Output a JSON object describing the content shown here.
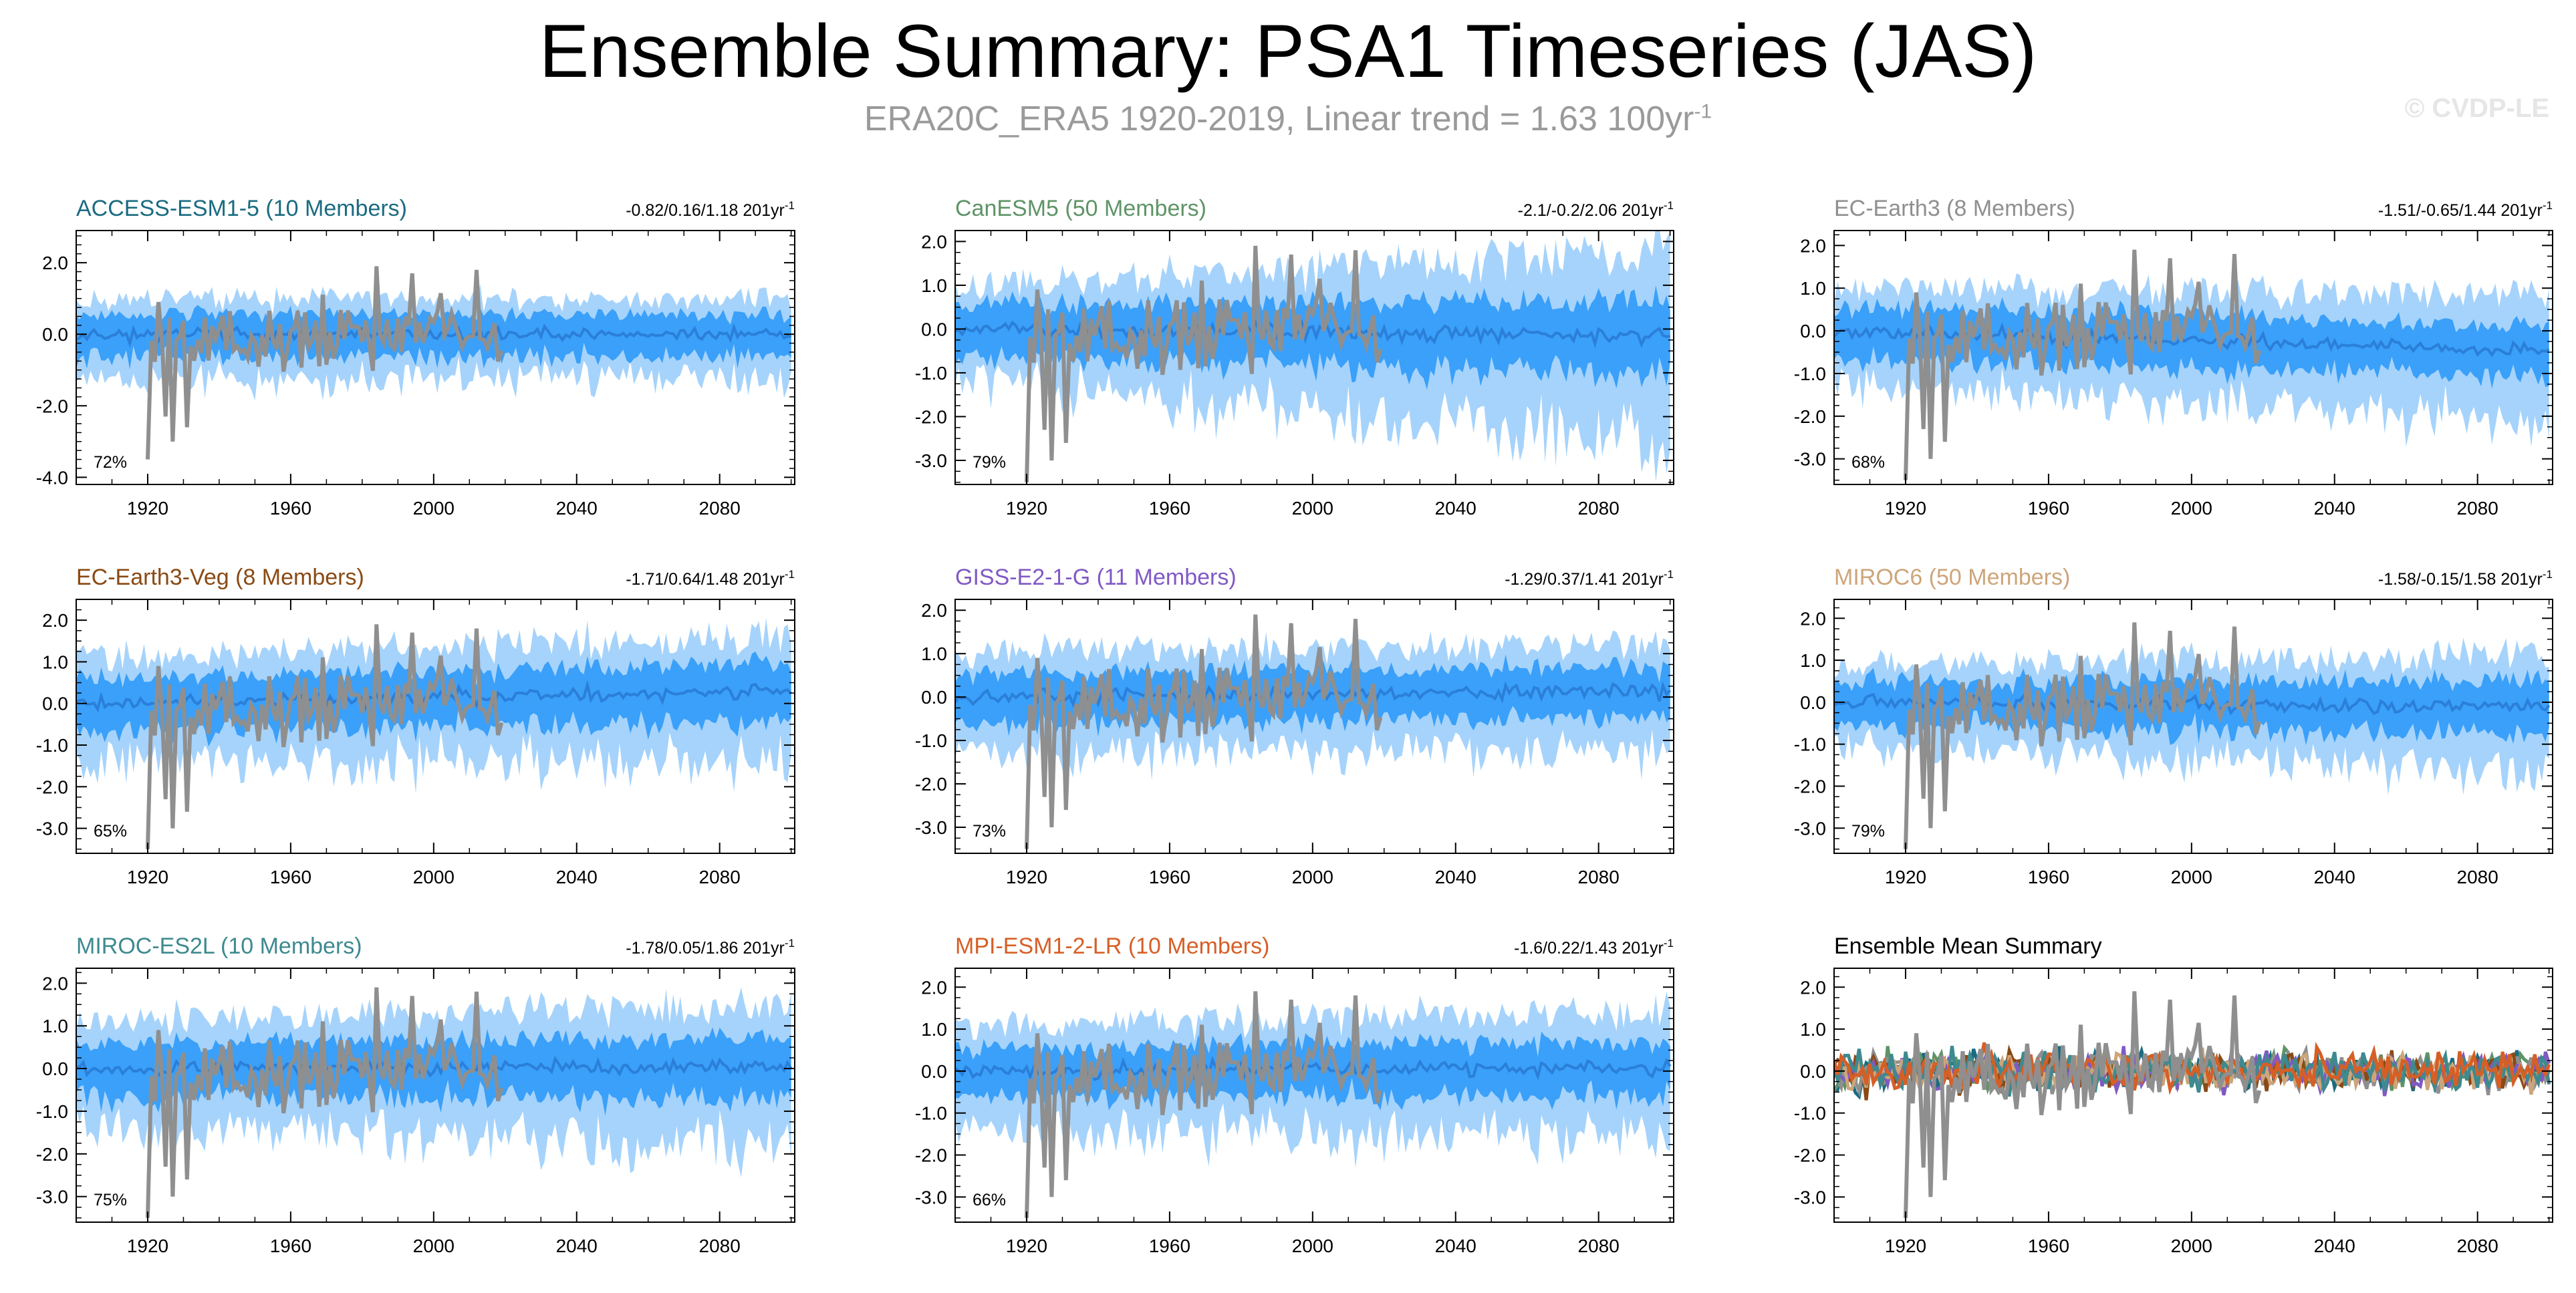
{
  "header": {
    "title": "Ensemble Summary: PSA1 Timeseries (JAS)",
    "subtitle_main": "ERA20C_ERA5 1920-2019, Linear trend = 1.63 100yr",
    "subtitle_sup": "-1",
    "watermark": "© CVDP-LE"
  },
  "colors": {
    "outer_band": "#a6d3fb",
    "inner_band": "#3aa0f9",
    "ensemble_mean": "#2b7fd9",
    "observations": "#8f8f8f",
    "axis": "#000000"
  },
  "chart_data": [
    {
      "type": "area",
      "id": "access",
      "title": "ACCESS-ESM1-5 (10 Members)",
      "title_color": "#1a6b80",
      "stat_text": "-0.82/0.16/1.18 201yr",
      "stat_sup": "-1",
      "pct": "72%",
      "ylim": [
        -4.2,
        2.9
      ],
      "yticks": [
        2.0,
        0.0,
        -2.0,
        -4.0
      ],
      "ytick_labels": [
        "2.0",
        "0.0",
        "-2.0",
        "-4.0"
      ],
      "xlim": [
        1900,
        2101
      ],
      "xticks": [
        1920,
        1960,
        2000,
        2040,
        2080
      ],
      "xtick_labels": [
        "1920",
        "1960",
        "2000",
        "2040",
        "2080"
      ],
      "outer": 0.95,
      "inner": 0.55,
      "outer_trend": 0.0,
      "inner_trend": 0.0,
      "mean_trend": 0.0,
      "seed": 11
    },
    {
      "type": "area",
      "id": "canesm5",
      "title": "CanESM5 (50 Members)",
      "title_color": "#5e9467",
      "stat_text": "-2.1/-0.2/2.06 201yr",
      "stat_sup": "-1",
      "pct": "79%",
      "ylim": [
        -3.55,
        2.25
      ],
      "yticks": [
        2.0,
        1.0,
        0.0,
        -1.0,
        -2.0,
        -3.0
      ],
      "ytick_labels": [
        "2.0",
        "1.0",
        "0.0",
        "-1.0",
        "-2.0",
        "-3.0"
      ],
      "xlim": [
        1900,
        2101
      ],
      "xticks": [
        1920,
        1960,
        2000,
        2040,
        2080
      ],
      "xtick_labels": [
        "1920",
        "1960",
        "2000",
        "2040",
        "2080"
      ],
      "outer": 0.95,
      "inner": 0.55,
      "outer_trend": 0.9,
      "inner_trend": 0.5,
      "mean_trend": -0.15,
      "seed": 23
    },
    {
      "type": "area",
      "id": "ecearth3",
      "title": "EC-Earth3 (8 Members)",
      "title_color": "#8f8f8f",
      "stat_text": "-1.51/-0.65/1.44 201yr",
      "stat_sup": "-1",
      "pct": "68%",
      "ylim": [
        -3.6,
        2.35
      ],
      "yticks": [
        2.0,
        1.0,
        0.0,
        -1.0,
        -2.0,
        -3.0
      ],
      "ytick_labels": [
        "2.0",
        "1.0",
        "0.0",
        "-1.0",
        "-2.0",
        "-3.0"
      ],
      "xlim": [
        1900,
        2101
      ],
      "xticks": [
        1920,
        1960,
        2000,
        2040,
        2080
      ],
      "xtick_labels": [
        "1920",
        "1960",
        "2000",
        "2040",
        "2080"
      ],
      "outer": 1.0,
      "inner": 0.55,
      "outer_trend": 0.2,
      "inner_trend": 0.1,
      "mean_trend": -0.45,
      "seed": 37
    },
    {
      "type": "area",
      "id": "ecearth3veg",
      "title": "EC-Earth3-Veg (8 Members)",
      "title_color": "#8a4a14",
      "stat_text": "-1.71/0.64/1.48 201yr",
      "stat_sup": "-1",
      "pct": "65%",
      "ylim": [
        -3.6,
        2.5
      ],
      "yticks": [
        2.0,
        1.0,
        0.0,
        -1.0,
        -2.0,
        -3.0
      ],
      "ytick_labels": [
        "2.0",
        "1.0",
        "0.0",
        "-1.0",
        "-2.0",
        "-3.0"
      ],
      "xlim": [
        1900,
        2101
      ],
      "xticks": [
        1920,
        1960,
        2000,
        2040,
        2080
      ],
      "xtick_labels": [
        "1920",
        "1960",
        "2000",
        "2040",
        "2080"
      ],
      "outer": 1.05,
      "inner": 0.6,
      "outer_trend": 0.2,
      "inner_trend": 0.1,
      "mean_trend": 0.3,
      "seed": 41
    },
    {
      "type": "area",
      "id": "giss",
      "title": "GISS-E2-1-G (11 Members)",
      "title_color": "#8059c4",
      "stat_text": "-1.29/0.37/1.41 201yr",
      "stat_sup": "-1",
      "pct": "73%",
      "ylim": [
        -3.6,
        2.25
      ],
      "yticks": [
        2.0,
        1.0,
        0.0,
        -1.0,
        -2.0,
        -3.0
      ],
      "ytick_labels": [
        "2.0",
        "1.0",
        "0.0",
        "-1.0",
        "-2.0",
        "-3.0"
      ],
      "xlim": [
        1900,
        2101
      ],
      "xticks": [
        1920,
        1960,
        2000,
        2040,
        2080
      ],
      "xtick_labels": [
        "1920",
        "1960",
        "2000",
        "2040",
        "2080"
      ],
      "outer": 1.0,
      "inner": 0.55,
      "outer_trend": 0.0,
      "inner_trend": 0.0,
      "mean_trend": 0.15,
      "seed": 53
    },
    {
      "type": "area",
      "id": "miroc6",
      "title": "MIROC6 (50 Members)",
      "title_color": "#cda57a",
      "stat_text": "-1.58/-0.15/1.58 201yr",
      "stat_sup": "-1",
      "pct": "79%",
      "ylim": [
        -3.6,
        2.45
      ],
      "yticks": [
        2.0,
        1.0,
        0.0,
        -1.0,
        -2.0,
        -3.0
      ],
      "ytick_labels": [
        "2.0",
        "1.0",
        "0.0",
        "-1.0",
        "-2.0",
        "-3.0"
      ],
      "xlim": [
        1900,
        2101
      ],
      "xticks": [
        1920,
        1960,
        2000,
        2040,
        2080
      ],
      "xtick_labels": [
        "1920",
        "1960",
        "2000",
        "2040",
        "2080"
      ],
      "outer": 0.85,
      "inner": 0.5,
      "outer_trend": 0.4,
      "inner_trend": 0.25,
      "mean_trend": -0.1,
      "seed": 67
    },
    {
      "type": "area",
      "id": "mirocesl",
      "title": "MIROC-ES2L (10 Members)",
      "title_color": "#3d8a8f",
      "stat_text": "-1.78/0.05/1.86 201yr",
      "stat_sup": "-1",
      "pct": "75%",
      "ylim": [
        -3.6,
        2.35
      ],
      "yticks": [
        2.0,
        1.0,
        0.0,
        -1.0,
        -2.0,
        -3.0
      ],
      "ytick_labels": [
        "2.0",
        "1.0",
        "0.0",
        "-1.0",
        "-2.0",
        "-3.0"
      ],
      "xlim": [
        1900,
        2101
      ],
      "xticks": [
        1920,
        1960,
        2000,
        2040,
        2080
      ],
      "xtick_labels": [
        "1920",
        "1960",
        "2000",
        "2040",
        "2080"
      ],
      "outer": 1.05,
      "inner": 0.6,
      "outer_trend": 0.3,
      "inner_trend": 0.1,
      "mean_trend": 0.05,
      "seed": 79
    },
    {
      "type": "area",
      "id": "mpi",
      "title": "MPI-ESM1-2-LR (10 Members)",
      "title_color": "#d65f26",
      "stat_text": "-1.6/0.22/1.43 201yr",
      "stat_sup": "-1",
      "pct": "66%",
      "ylim": [
        -3.6,
        2.45
      ],
      "yticks": [
        2.0,
        1.0,
        0.0,
        -1.0,
        -2.0,
        -3.0
      ],
      "ytick_labels": [
        "2.0",
        "1.0",
        "0.0",
        "-1.0",
        "-2.0",
        "-3.0"
      ],
      "xlim": [
        1900,
        2101
      ],
      "xticks": [
        1920,
        1960,
        2000,
        2040,
        2080
      ],
      "xtick_labels": [
        "1920",
        "1960",
        "2000",
        "2040",
        "2080"
      ],
      "outer": 1.0,
      "inner": 0.55,
      "outer_trend": 0.3,
      "inner_trend": 0.1,
      "mean_trend": 0.1,
      "seed": 83
    },
    {
      "type": "line",
      "id": "summary",
      "title": "Ensemble Mean Summary",
      "title_color": "#000000",
      "stat_text": "",
      "stat_sup": "",
      "pct": "",
      "ylim": [
        -3.6,
        2.45
      ],
      "yticks": [
        2.0,
        1.0,
        0.0,
        -1.0,
        -2.0,
        -3.0
      ],
      "ytick_labels": [
        "2.0",
        "1.0",
        "0.0",
        "-1.0",
        "-2.0",
        "-3.0"
      ],
      "xlim": [
        1900,
        2101
      ],
      "xticks": [
        1920,
        1960,
        2000,
        2040,
        2080
      ],
      "xtick_labels": [
        "1920",
        "1960",
        "2000",
        "2040",
        "2080"
      ],
      "series_colors": [
        "#1a6b80",
        "#5e9467",
        "#8f8f8f",
        "#8a4a14",
        "#8059c4",
        "#cda57a",
        "#3d8a8f",
        "#d65f26"
      ],
      "seed": 97
    }
  ]
}
